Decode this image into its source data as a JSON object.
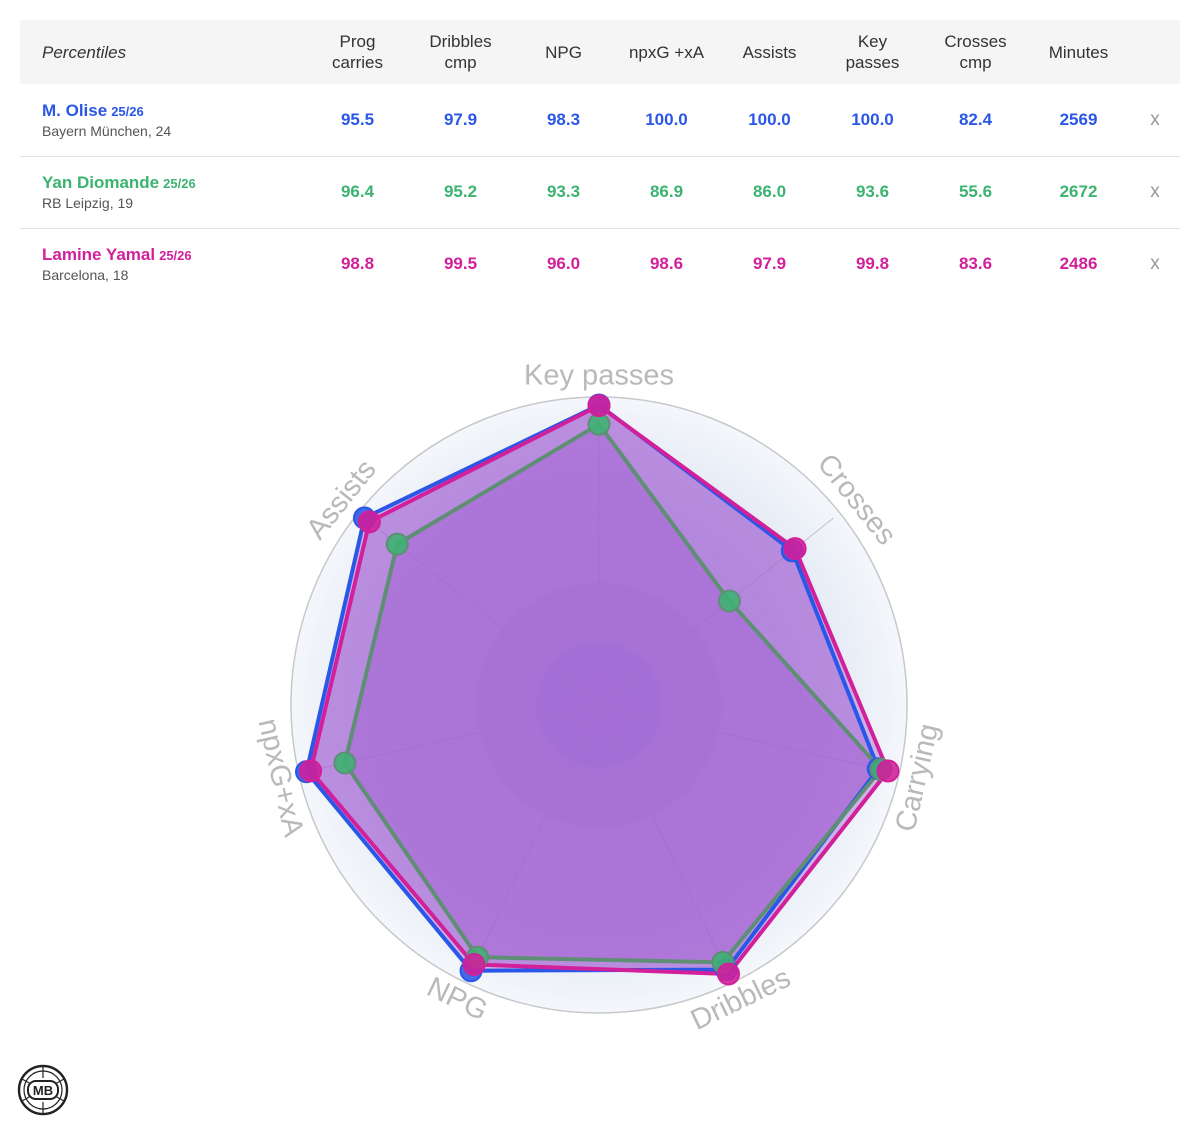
{
  "table": {
    "header_label": "Percentiles",
    "columns": [
      [
        "Prog",
        "carries"
      ],
      [
        "Dribbles",
        "cmp"
      ],
      [
        "NPG",
        ""
      ],
      [
        "npxG +xA",
        ""
      ],
      [
        "Assists",
        ""
      ],
      [
        "Key",
        "passes"
      ],
      [
        "Crosses",
        "cmp"
      ],
      [
        "Minutes",
        ""
      ]
    ],
    "remove_label": "x"
  },
  "players": [
    {
      "name": "M. Olise",
      "season": "25/26",
      "club": "Bayern München, 24",
      "color": "#2a57e8",
      "values": [
        "95.5",
        "97.9",
        "98.3",
        "100.0",
        "100.0",
        "100.0",
        "82.4",
        "2569"
      ]
    },
    {
      "name": "Yan Diomande",
      "season": "25/26",
      "club": "RB Leipzig, 19",
      "color": "#3cb371",
      "values": [
        "96.4",
        "95.2",
        "93.3",
        "86.9",
        "86.0",
        "93.6",
        "55.6",
        "2672"
      ]
    },
    {
      "name": "Lamine Yamal",
      "season": "25/26",
      "club": "Barcelona, 18",
      "color": "#d21f9a",
      "values": [
        "98.8",
        "99.5",
        "96.0",
        "98.6",
        "97.9",
        "99.8",
        "83.6",
        "2486"
      ]
    }
  ],
  "chart_data": {
    "type": "radar",
    "axes": [
      "Key passes",
      "Crosses",
      "Carrying",
      "Dribbles",
      "NPG",
      "npxG+xA",
      "Assists"
    ],
    "range": [
      0,
      100
    ],
    "series": [
      {
        "name": "M. Olise",
        "color": "#2a57e8",
        "line_color": "#2a57e8",
        "values": [
          100.0,
          82.4,
          95.5,
          97.9,
          98.3,
          100.0,
          100.0
        ]
      },
      {
        "name": "Yan Diomande",
        "color": "#3cb371",
        "line_color": "#5e8f74",
        "values": [
          93.6,
          55.6,
          96.4,
          95.2,
          93.3,
          86.9,
          86.0
        ]
      },
      {
        "name": "Lamine Yamal",
        "color": "#d21f9a",
        "line_color": "#d21f9a",
        "values": [
          99.8,
          83.6,
          98.8,
          99.5,
          96.0,
          98.6,
          97.9
        ]
      }
    ],
    "fill_color": "#a05ad2",
    "grid": true
  },
  "logo": {
    "text": "MB"
  }
}
